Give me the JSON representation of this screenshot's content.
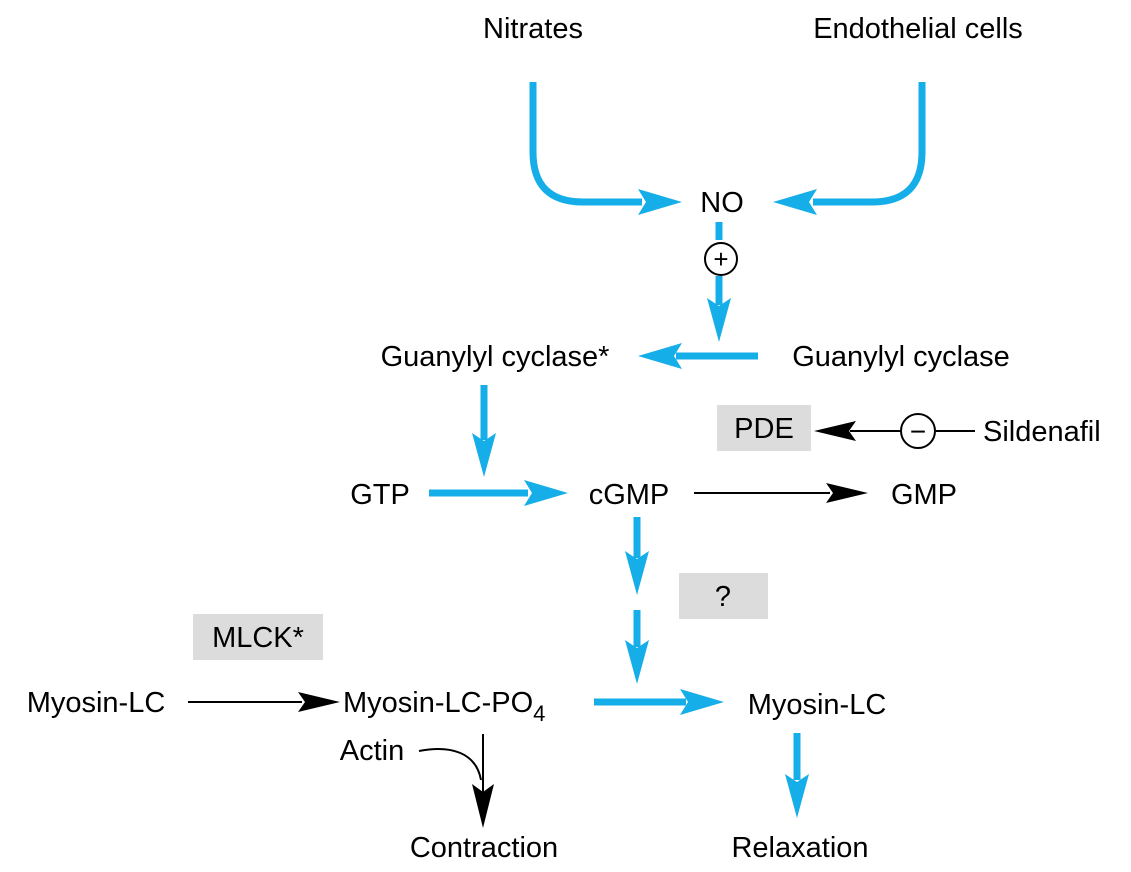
{
  "diagram": {
    "nitrates": "Nitrates",
    "endothelial_cells": "Endothelial cells",
    "no": "NO",
    "activator_sign": "+",
    "guanylyl_cyclase_active": "Guanylyl cyclase*",
    "guanylyl_cyclase": "Guanylyl cyclase",
    "pde": "PDE",
    "inhibitor_sign": "−",
    "sildenafil": "Sildenafil",
    "gtp": "GTP",
    "cgmp": "cGMP",
    "gmp": "GMP",
    "unknown_step": "?",
    "mlck": "MLCK*",
    "myosin_lc_left": "Myosin-LC",
    "myosin_lc_po4": "Myosin-LC-PO",
    "po4_subscript": "4",
    "myosin_lc_right": "Myosin-LC",
    "actin": "Actin",
    "contraction": "Contraction",
    "relaxation": "Relaxation"
  },
  "colors": {
    "pathway_arrow": "#16aee8",
    "label_box": "#dcdcdc",
    "text": "#000000"
  }
}
